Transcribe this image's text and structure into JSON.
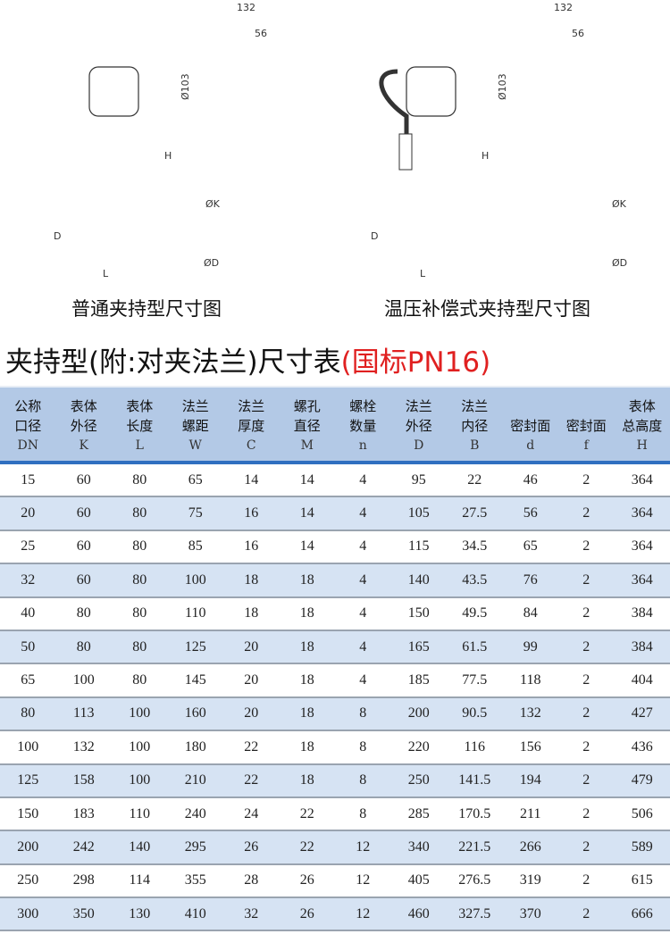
{
  "drawings": {
    "left": {
      "caption": "普通夹持型尺寸图",
      "dim_width": "132",
      "dim_offset": "56",
      "dim_dia": "Ø103",
      "dim_h": "H",
      "dim_d": "D",
      "dim_l": "L",
      "dim_k": "ØK",
      "dim_flange": "ØD"
    },
    "right": {
      "caption": "温压补偿式夹持型尺寸图",
      "dim_width": "132",
      "dim_offset": "56",
      "dim_dia": "Ø103",
      "dim_h": "H",
      "dim_d": "D",
      "dim_l": "L",
      "dim_k": "ØK",
      "dim_flange": "ØD"
    }
  },
  "title": {
    "main": "夹持型(附:对夹法兰)尺寸表",
    "standard": "(国标PN16)"
  },
  "table": {
    "columns": [
      {
        "l1": "公称",
        "l2": "口径",
        "sym": "DN"
      },
      {
        "l1": "表体",
        "l2": "外径",
        "sym": "K"
      },
      {
        "l1": "表体",
        "l2": "长度",
        "sym": "L"
      },
      {
        "l1": "法兰",
        "l2": "螺距",
        "sym": "W"
      },
      {
        "l1": "法兰",
        "l2": "厚度",
        "sym": "C"
      },
      {
        "l1": "螺孔",
        "l2": "直径",
        "sym": "M"
      },
      {
        "l1": "螺栓",
        "l2": "数量",
        "sym": "n"
      },
      {
        "l1": "法兰",
        "l2": "外径",
        "sym": "D"
      },
      {
        "l1": "法兰",
        "l2": "内径",
        "sym": "B"
      },
      {
        "l1": "",
        "l2": "密封面",
        "sym": "d"
      },
      {
        "l1": "",
        "l2": "密封面",
        "sym": "f"
      },
      {
        "l1": "表体",
        "l2": "总高度",
        "sym": "H"
      }
    ],
    "rows": [
      [
        "15",
        "60",
        "80",
        "65",
        "14",
        "14",
        "4",
        "95",
        "22",
        "46",
        "2",
        "364"
      ],
      [
        "20",
        "60",
        "80",
        "75",
        "16",
        "14",
        "4",
        "105",
        "27.5",
        "56",
        "2",
        "364"
      ],
      [
        "25",
        "60",
        "80",
        "85",
        "16",
        "14",
        "4",
        "115",
        "34.5",
        "65",
        "2",
        "364"
      ],
      [
        "32",
        "60",
        "80",
        "100",
        "18",
        "18",
        "4",
        "140",
        "43.5",
        "76",
        "2",
        "364"
      ],
      [
        "40",
        "80",
        "80",
        "110",
        "18",
        "18",
        "4",
        "150",
        "49.5",
        "84",
        "2",
        "384"
      ],
      [
        "50",
        "80",
        "80",
        "125",
        "20",
        "18",
        "4",
        "165",
        "61.5",
        "99",
        "2",
        "384"
      ],
      [
        "65",
        "100",
        "80",
        "145",
        "20",
        "18",
        "4",
        "185",
        "77.5",
        "118",
        "2",
        "404"
      ],
      [
        "80",
        "113",
        "100",
        "160",
        "20",
        "18",
        "8",
        "200",
        "90.5",
        "132",
        "2",
        "427"
      ],
      [
        "100",
        "132",
        "100",
        "180",
        "22",
        "18",
        "8",
        "220",
        "116",
        "156",
        "2",
        "436"
      ],
      [
        "125",
        "158",
        "100",
        "210",
        "22",
        "18",
        "8",
        "250",
        "141.5",
        "194",
        "2",
        "479"
      ],
      [
        "150",
        "183",
        "110",
        "240",
        "24",
        "22",
        "8",
        "285",
        "170.5",
        "211",
        "2",
        "506"
      ],
      [
        "200",
        "242",
        "140",
        "295",
        "26",
        "22",
        "12",
        "340",
        "221.5",
        "266",
        "2",
        "589"
      ],
      [
        "250",
        "298",
        "114",
        "355",
        "28",
        "26",
        "12",
        "405",
        "276.5",
        "319",
        "2",
        "615"
      ],
      [
        "300",
        "350",
        "130",
        "410",
        "32",
        "26",
        "12",
        "460",
        "327.5",
        "370",
        "2",
        "666"
      ]
    ]
  },
  "colors": {
    "header_bg": "#b3c9e6",
    "row_alt": "#d6e3f3",
    "header_rule": "#2f6fc0",
    "accent_red": "#e02020"
  }
}
